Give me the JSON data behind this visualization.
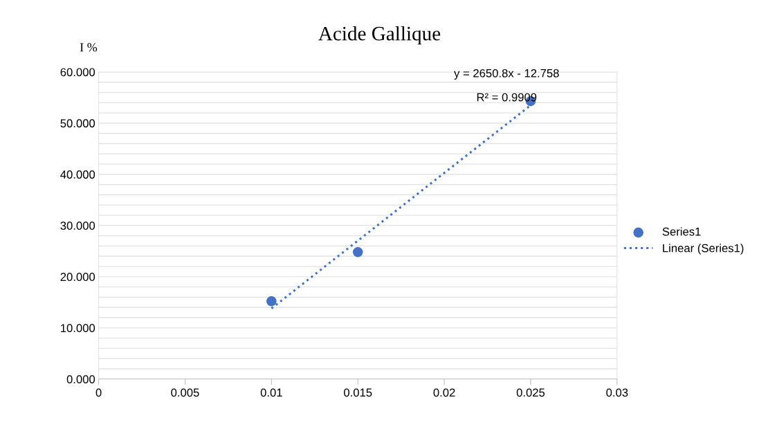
{
  "chart_data": {
    "type": "scatter",
    "title": "Acide Gallique",
    "ylabel": "I %",
    "x": [
      0.01,
      0.015,
      0.025
    ],
    "series": [
      {
        "name": "Series1",
        "color": "#4472c4",
        "marker": "circle",
        "values": [
          15.2,
          24.8,
          54.3
        ]
      },
      {
        "name": "Linear (Series1)",
        "type": "line",
        "color": "#4472c4",
        "line_style": "dotted",
        "marker": "none",
        "x": [
          0.01,
          0.025
        ],
        "values": [
          13.8,
          53.5
        ]
      }
    ],
    "annotations": [
      {
        "text": "y = 2650.8x - 12.758",
        "x": 0.025,
        "y": 54.3
      },
      {
        "text": "R² = 0.9909",
        "x": 0.025,
        "y": 54.3
      }
    ],
    "xlim": [
      0,
      0.03
    ],
    "xticks": [
      0,
      0.005,
      0.01,
      0.015,
      0.02,
      0.025,
      0.03
    ],
    "ylim": [
      0,
      60
    ],
    "yticks": [
      {
        "value": 0,
        "label": "0.000"
      },
      {
        "value": 2,
        "label": null
      },
      {
        "value": 4,
        "label": null
      },
      {
        "value": 6,
        "label": null
      },
      {
        "value": 8,
        "label": null
      },
      {
        "value": 10,
        "label": "10.000"
      },
      {
        "value": 12,
        "label": null
      },
      {
        "value": 14,
        "label": null
      },
      {
        "value": 16,
        "label": null
      },
      {
        "value": 18,
        "label": null
      },
      {
        "value": 20,
        "label": "20.000"
      },
      {
        "value": 22,
        "label": null
      },
      {
        "value": 24,
        "label": null
      },
      {
        "value": 26,
        "label": null
      },
      {
        "value": 28,
        "label": null
      },
      {
        "value": 30,
        "label": "30.000"
      },
      {
        "value": 32,
        "label": null
      },
      {
        "value": 34,
        "label": null
      },
      {
        "value": 36,
        "label": null
      },
      {
        "value": 38,
        "label": null
      },
      {
        "value": 40,
        "label": "40.000"
      },
      {
        "value": 42,
        "label": null
      },
      {
        "value": 44,
        "label": null
      },
      {
        "value": 46,
        "label": null
      },
      {
        "value": 48,
        "label": null
      },
      {
        "value": 50,
        "label": "50.000"
      },
      {
        "value": 52,
        "label": null
      },
      {
        "value": 54,
        "label": null
      },
      {
        "value": 56,
        "label": null
      },
      {
        "value": 58,
        "label": null
      },
      {
        "value": 60,
        "label": "60.000"
      }
    ],
    "grid": "y",
    "legend": "right"
  }
}
